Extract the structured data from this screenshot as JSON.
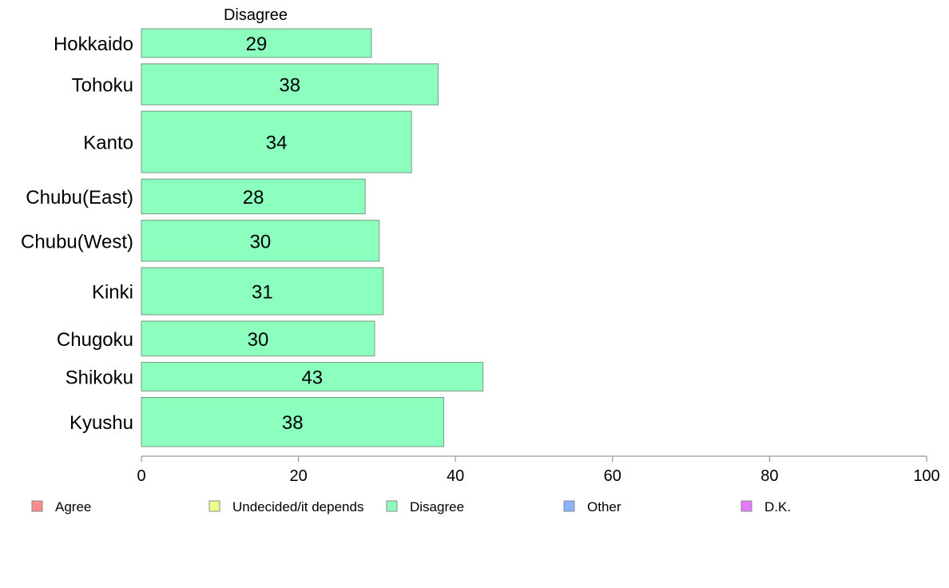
{
  "chart_data": {
    "type": "bar",
    "orientation": "horizontal",
    "panel_title": "Disagree",
    "categories": [
      "Hokkaido",
      "Tohoku",
      "Kanto",
      "Chubu(East)",
      "Chubu(West)",
      "Kinki",
      "Chugoku",
      "Shikoku",
      "Kyushu"
    ],
    "values": [
      29,
      38,
      34,
      28,
      30,
      31,
      30,
      43,
      38
    ],
    "exact_values": [
      29.3,
      37.8,
      34.4,
      28.5,
      30.3,
      30.8,
      29.7,
      43.5,
      38.5
    ],
    "relative_bar_thickness": [
      0.7,
      1.0,
      1.5,
      0.85,
      1.0,
      1.15,
      0.85,
      0.7,
      1.2
    ],
    "xlim": [
      0,
      100
    ],
    "xticks": [
      "0",
      "20",
      "40",
      "60",
      "80",
      "100"
    ],
    "bar_color": "#8cffbf",
    "bar_border_color": "#7a9a86",
    "axis_color": "#999999",
    "legend": [
      {
        "label": "Agree",
        "color": "#ff8c8c"
      },
      {
        "label": "Undecided/it depends",
        "color": "#ecff8c"
      },
      {
        "label": "Disagree",
        "color": "#8cffbf"
      },
      {
        "label": "Other",
        "color": "#8cb3ff"
      },
      {
        "label": "D.K.",
        "color": "#e57aff"
      }
    ],
    "legend_position": "bottom",
    "grid": false
  }
}
